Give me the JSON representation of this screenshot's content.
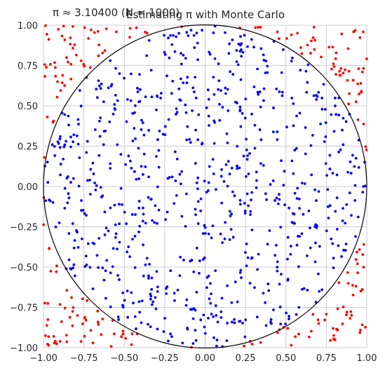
{
  "chart_data": {
    "type": "scatter",
    "title": "Estimating π with Monte Carlo",
    "annotation": "π ≈ 3.10400 (N = 1000)",
    "xlabel": "",
    "ylabel": "",
    "xlim": [
      -1.0,
      1.0
    ],
    "ylim": [
      -1.0,
      1.0
    ],
    "x_ticks": [
      -1.0,
      -0.75,
      -0.5,
      -0.25,
      0.0,
      0.25,
      0.5,
      0.75,
      1.0
    ],
    "y_ticks": [
      -1.0,
      -0.75,
      -0.5,
      -0.25,
      0.0,
      0.25,
      0.5,
      0.75,
      1.0
    ],
    "x_tick_labels": [
      "−1.00",
      "−0.75",
      "−0.50",
      "−0.25",
      "0.00",
      "0.25",
      "0.50",
      "0.75",
      "1.00"
    ],
    "y_tick_labels": [
      "−1.00",
      "−0.75",
      "−0.50",
      "−0.25",
      "0.00",
      "0.25",
      "0.50",
      "0.75",
      "1.00"
    ],
    "grid": true,
    "n_points": 1000,
    "pi_estimate": 3.104,
    "circle": {
      "center": [
        0,
        0
      ],
      "radius": 1,
      "color": "#000000"
    },
    "series": [
      {
        "name": "",
        "color": "#0000ff",
        "region": "inside",
        "count": 776
      },
      {
        "name": "",
        "color": "#ff0000",
        "region": "outside",
        "count": 224
      }
    ],
    "colors": {
      "inside": "#0000ff",
      "outside": "#ff0000",
      "grid": "#cccccc",
      "spine": "#cccccc",
      "text": "#262626"
    }
  }
}
